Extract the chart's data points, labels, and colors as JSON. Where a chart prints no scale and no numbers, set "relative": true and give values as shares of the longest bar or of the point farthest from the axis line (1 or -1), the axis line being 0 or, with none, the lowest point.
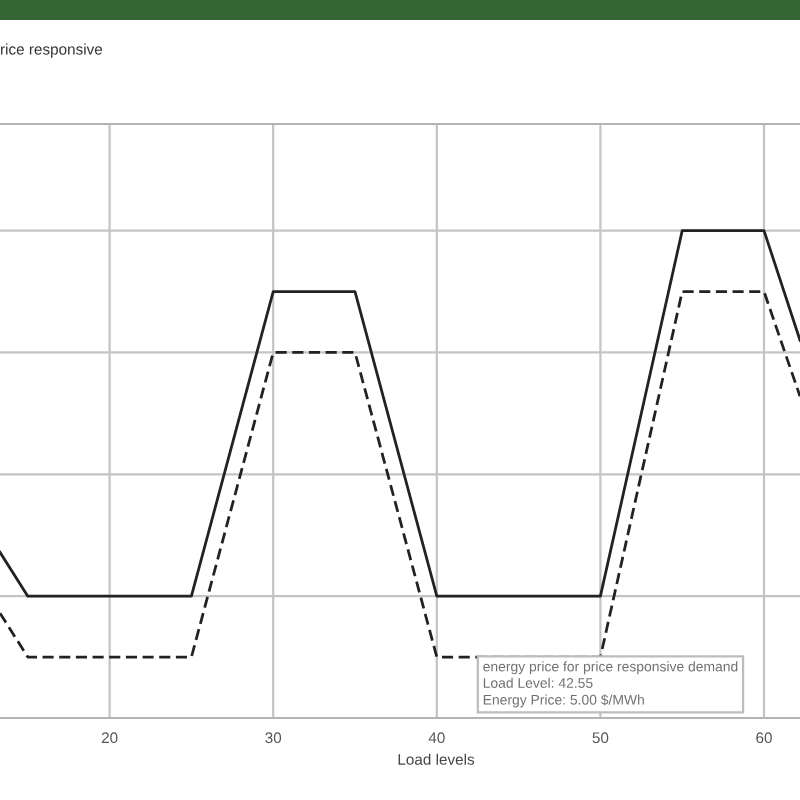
{
  "chart_data": {
    "type": "line",
    "title": "rice responsive",
    "xlabel": "Load levels",
    "relative": true,
    "x": [
      13.3,
      15,
      25,
      30,
      35,
      40,
      50,
      55,
      60,
      62.2
    ],
    "series": [
      {
        "color": "#222222",
        "line_style": "solid",
        "values": [
          0.34,
          0.25,
          0.25,
          0.875,
          0.875,
          0.25,
          0.25,
          1.0,
          1.0,
          0.775
        ]
      },
      {
        "color": "#222222",
        "line_style": "dashed",
        "values": [
          0.215,
          0.125,
          0.125,
          0.75,
          0.75,
          0.125,
          0.125,
          0.875,
          0.875,
          0.66
        ]
      }
    ],
    "xlim": [
      13.3,
      62.2
    ],
    "xticks": [
      20,
      30,
      40,
      50,
      60
    ],
    "grid": true,
    "annotations": [
      {
        "text": "energy price for price responsive demand\nLoad Level: 42.55\nEnergy Price: 5.00 $/MWh",
        "x": 42.55,
        "y": 0.125
      }
    ]
  }
}
